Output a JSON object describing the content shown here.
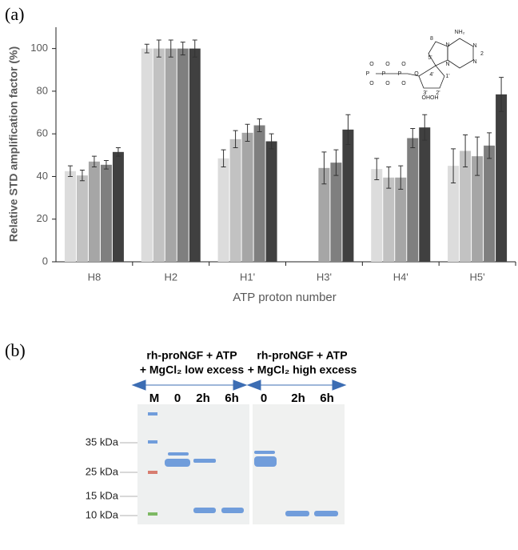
{
  "chart_data": {
    "type": "bar",
    "panel": "(a)",
    "y_label": "Relative STD amplification factor (%)",
    "x_label": "ATP proton number",
    "categories": [
      "H8",
      "H2",
      "H1'",
      "H3'",
      "H4'",
      "H5'"
    ],
    "series": [
      {
        "color": "#dcdcdc",
        "values": [
          42.5,
          100,
          48.5,
          null,
          43.5,
          45
        ],
        "errors": [
          2.5,
          2,
          4,
          null,
          5,
          8
        ]
      },
      {
        "color": "#c2c2c2",
        "values": [
          40.5,
          100,
          57.5,
          null,
          39.5,
          52
        ],
        "errors": [
          2.5,
          4,
          4,
          null,
          5,
          7.5
        ]
      },
      {
        "color": "#a6a6a6",
        "values": [
          47,
          100,
          60.5,
          44,
          39.5,
          49.5
        ],
        "errors": [
          2.5,
          4,
          4,
          7.5,
          5.5,
          9
        ]
      },
      {
        "color": "#7f7f7f",
        "values": [
          45.5,
          100,
          64,
          46.5,
          58,
          54.5
        ],
        "errors": [
          2,
          3,
          3,
          6,
          4.5,
          6
        ]
      },
      {
        "color": "#404040",
        "values": [
          51.5,
          100,
          56.5,
          62,
          63,
          78.5
        ],
        "errors": [
          2,
          4,
          3.5,
          7,
          6,
          8
        ]
      }
    ],
    "ylim": [
      0,
      110
    ],
    "yticks": [
      0,
      20,
      40,
      60,
      80,
      100
    ]
  },
  "structure": {
    "labels": [
      "NH₂",
      "N",
      "N",
      "N",
      "N",
      "8",
      "2",
      "O",
      "O",
      "O",
      "O",
      "O",
      "O",
      "O",
      "5'",
      "4'",
      "3'",
      "2'",
      "1'",
      "OHOH",
      "P",
      "P",
      "P"
    ]
  },
  "gel": {
    "panel": "(b)",
    "groups": [
      {
        "line1": "rh-proNGF + ATP",
        "line2": "+ MgCl₂ low excess"
      },
      {
        "line1": "rh-proNGF + ATP",
        "line2": "+ MgCl₂ high excess"
      }
    ],
    "lanes": [
      "M",
      "0",
      "2h",
      "6h",
      "0",
      "2h",
      "6h"
    ],
    "markers": [
      "35 kDa",
      "25 kDa",
      "15 kDa",
      "10 kDa"
    ]
  }
}
